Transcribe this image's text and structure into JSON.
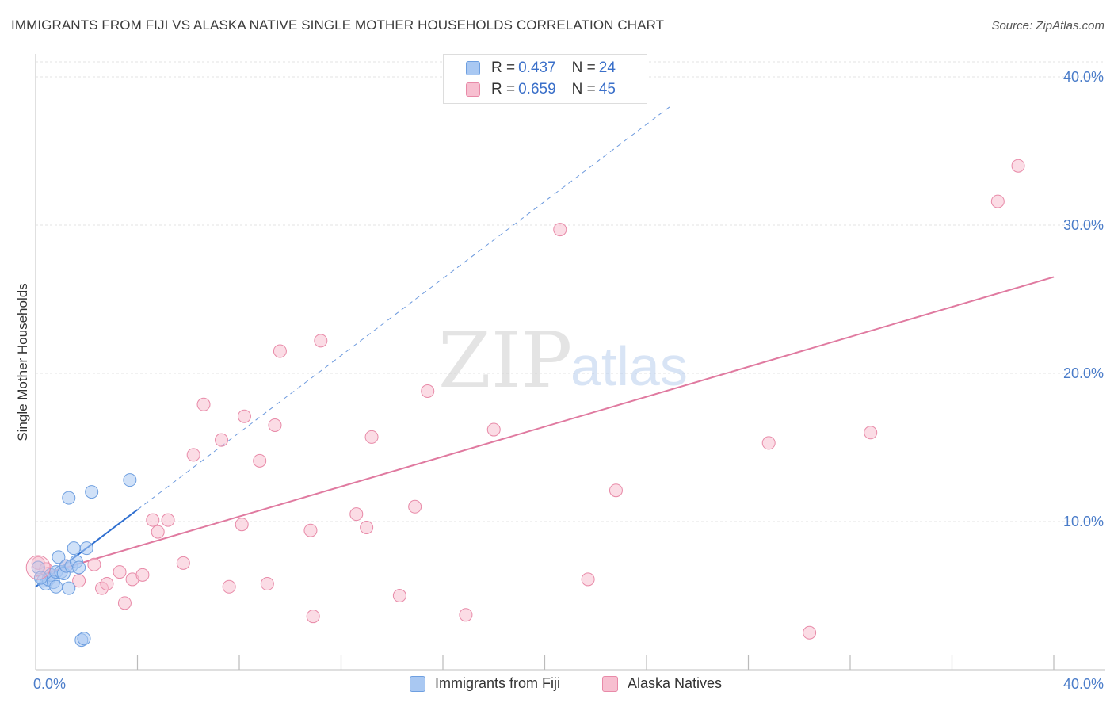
{
  "title": "IMMIGRANTS FROM FIJI VS ALASKA NATIVE SINGLE MOTHER HOUSEHOLDS CORRELATION CHART",
  "source": "Source: ZipAtlas.com",
  "watermark": {
    "zip": "ZIP",
    "atlas": "atlas"
  },
  "legend": {
    "rows": [
      {
        "r_label": "R =",
        "r_value": "0.437",
        "n_label": "N =",
        "n_value": "24",
        "color": "#a9c8f2",
        "border": "#6e9fe0"
      },
      {
        "r_label": "R =",
        "r_value": "0.659",
        "n_label": "N =",
        "n_value": "45",
        "color": "#f7bfd0",
        "border": "#e88aa8"
      }
    ]
  },
  "bottom_legend": [
    {
      "label": "Immigrants from Fiji",
      "color": "#a9c8f2",
      "border": "#6e9fe0"
    },
    {
      "label": "Alaska Natives",
      "color": "#f7bfd0",
      "border": "#e88aa8"
    }
  ],
  "chart_data": {
    "type": "scatter",
    "title": "IMMIGRANTS FROM FIJI VS ALASKA NATIVE SINGLE MOTHER HOUSEHOLDS CORRELATION CHART",
    "xlabel": "",
    "ylabel": "Single Mother Households",
    "xlim": [
      0,
      40
    ],
    "ylim": [
      0,
      40
    ],
    "x_tick_labels": [
      "0.0%",
      "40.0%"
    ],
    "y_tick_labels": [
      "10.0%",
      "20.0%",
      "30.0%",
      "40.0%"
    ],
    "y_ticks": [
      10,
      20,
      30,
      40
    ],
    "grid": true,
    "legend_position": "top-center",
    "series": [
      {
        "name": "Immigrants from Fiji",
        "color": "#a9c8f2",
        "edge": "#6e9fe0",
        "line_color": "#2f6fd0",
        "trend": {
          "x0": 0.0,
          "y0": 5.6,
          "x1": 4.0,
          "y1": 10.8,
          "dashed_to_x": 25.0
        },
        "points": [
          [
            0.1,
            6.9
          ],
          [
            0.3,
            6.0
          ],
          [
            0.4,
            5.8
          ],
          [
            0.5,
            6.1
          ],
          [
            0.6,
            6.4
          ],
          [
            0.7,
            5.9
          ],
          [
            0.8,
            6.6
          ],
          [
            0.8,
            5.6
          ],
          [
            0.9,
            7.6
          ],
          [
            1.0,
            6.6
          ],
          [
            1.1,
            6.5
          ],
          [
            1.2,
            7.0
          ],
          [
            1.3,
            11.6
          ],
          [
            1.3,
            5.5
          ],
          [
            1.4,
            7.0
          ],
          [
            1.5,
            8.2
          ],
          [
            1.6,
            7.3
          ],
          [
            1.7,
            6.9
          ],
          [
            1.8,
            2.0
          ],
          [
            1.9,
            2.1
          ],
          [
            2.0,
            8.2
          ],
          [
            2.2,
            12.0
          ],
          [
            3.7,
            12.8
          ],
          [
            0.2,
            6.2
          ]
        ]
      },
      {
        "name": "Alaska Natives",
        "color": "#f7bfd0",
        "edge": "#e88aa8",
        "line_color": "#e07aa0",
        "trend": {
          "x0": 0.0,
          "y0": 6.3,
          "x1": 40.0,
          "y1": 26.5
        },
        "points": [
          [
            0.1,
            7.2
          ],
          [
            0.5,
            6.5
          ],
          [
            1.2,
            7.0
          ],
          [
            1.7,
            6.0
          ],
          [
            2.3,
            7.1
          ],
          [
            2.6,
            5.5
          ],
          [
            2.8,
            5.8
          ],
          [
            3.3,
            6.6
          ],
          [
            3.5,
            4.5
          ],
          [
            3.8,
            6.1
          ],
          [
            4.2,
            6.4
          ],
          [
            4.6,
            10.1
          ],
          [
            4.8,
            9.3
          ],
          [
            5.2,
            10.1
          ],
          [
            5.8,
            7.2
          ],
          [
            6.2,
            14.5
          ],
          [
            6.6,
            17.9
          ],
          [
            7.3,
            15.5
          ],
          [
            7.6,
            5.6
          ],
          [
            8.1,
            9.8
          ],
          [
            8.2,
            17.1
          ],
          [
            8.8,
            14.1
          ],
          [
            9.1,
            5.8
          ],
          [
            9.4,
            16.5
          ],
          [
            9.6,
            21.5
          ],
          [
            10.8,
            9.4
          ],
          [
            10.9,
            3.6
          ],
          [
            11.2,
            22.2
          ],
          [
            12.6,
            10.5
          ],
          [
            13.0,
            9.6
          ],
          [
            13.2,
            15.7
          ],
          [
            14.3,
            5.0
          ],
          [
            14.9,
            11.0
          ],
          [
            15.4,
            18.8
          ],
          [
            16.9,
            3.7
          ],
          [
            18.0,
            16.2
          ],
          [
            20.6,
            29.7
          ],
          [
            21.7,
            6.1
          ],
          [
            22.8,
            12.1
          ],
          [
            28.8,
            15.3
          ],
          [
            30.4,
            2.5
          ],
          [
            32.8,
            16.0
          ],
          [
            37.8,
            31.6
          ],
          [
            38.6,
            34.0
          ],
          [
            0.4,
            6.8
          ]
        ]
      }
    ]
  }
}
